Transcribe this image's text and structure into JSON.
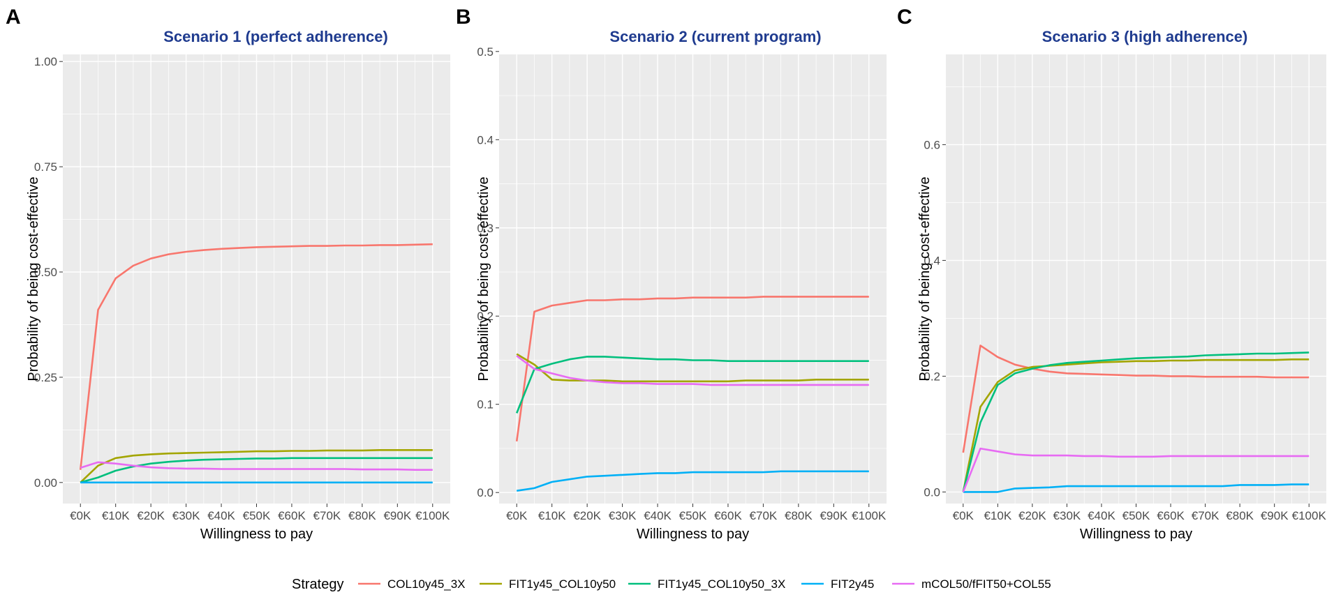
{
  "chart_data": [
    {
      "type": "line",
      "panel_label": "A",
      "title": "Scenario 1 (perfect adherence)",
      "xlabel": "Willingness to pay",
      "ylabel": "Probability of being cost-effective",
      "x": [
        0,
        5000,
        10000,
        15000,
        20000,
        25000,
        30000,
        35000,
        40000,
        45000,
        50000,
        55000,
        60000,
        65000,
        70000,
        75000,
        80000,
        85000,
        90000,
        95000,
        100000
      ],
      "xticks": [
        0,
        10000,
        20000,
        30000,
        40000,
        50000,
        60000,
        70000,
        80000,
        90000,
        100000
      ],
      "xtick_labels": [
        "€0K",
        "€10K",
        "€20K",
        "€30K",
        "€40K",
        "€50K",
        "€60K",
        "€70K",
        "€80K",
        "€90K",
        "€100K"
      ],
      "xlim": [
        -5000,
        105000
      ],
      "ylim": [
        -0.05,
        1.05
      ],
      "yticks": [
        0,
        0.25,
        0.5,
        0.75,
        1.0
      ],
      "ytick_labels": [
        "0.00",
        "0.25",
        "0.50",
        "0.75",
        "1.00"
      ],
      "series": [
        {
          "name": "COL10y45_3X",
          "color": "#F8766D",
          "values": [
            0.03,
            0.41,
            0.485,
            0.515,
            0.532,
            0.542,
            0.548,
            0.552,
            0.555,
            0.557,
            0.559,
            0.56,
            0.561,
            0.562,
            0.562,
            0.563,
            0.563,
            0.564,
            0.564,
            0.565,
            0.566
          ]
        },
        {
          "name": "FIT1y45_COL10y50",
          "color": "#A3A500",
          "values": [
            0.0,
            0.04,
            0.058,
            0.064,
            0.067,
            0.069,
            0.07,
            0.071,
            0.072,
            0.073,
            0.074,
            0.074,
            0.075,
            0.075,
            0.076,
            0.076,
            0.076,
            0.077,
            0.077,
            0.077,
            0.077
          ]
        },
        {
          "name": "FIT1y45_COL10y50_3X",
          "color": "#00BF7D",
          "values": [
            0.0,
            0.012,
            0.028,
            0.038,
            0.045,
            0.049,
            0.052,
            0.054,
            0.055,
            0.056,
            0.057,
            0.057,
            0.058,
            0.058,
            0.058,
            0.058,
            0.058,
            0.058,
            0.058,
            0.058,
            0.058
          ]
        },
        {
          "name": "FIT2y45",
          "color": "#00B0F6",
          "values": [
            0.0,
            0.0,
            0.0,
            0.0,
            0.0,
            0.0,
            0.0,
            0.0,
            0.0,
            0.0,
            0.0,
            0.0,
            0.0,
            0.0,
            0.0,
            0.0,
            0.0,
            0.0,
            0.0,
            0.0,
            0.0
          ]
        },
        {
          "name": "mCOL50/fFIT50+COL55",
          "color": "#E76BF3",
          "values": [
            0.035,
            0.048,
            0.045,
            0.04,
            0.036,
            0.034,
            0.033,
            0.033,
            0.032,
            0.032,
            0.032,
            0.032,
            0.032,
            0.032,
            0.032,
            0.032,
            0.031,
            0.031,
            0.031,
            0.03,
            0.03
          ]
        }
      ]
    },
    {
      "type": "line",
      "panel_label": "B",
      "title": "Scenario 2 (current program)",
      "xlabel": "Willingness to pay",
      "ylabel": "Probability of being cost-effective",
      "x": [
        0,
        5000,
        10000,
        15000,
        20000,
        25000,
        30000,
        35000,
        40000,
        45000,
        50000,
        55000,
        60000,
        65000,
        70000,
        75000,
        80000,
        85000,
        90000,
        95000,
        100000
      ],
      "xticks": [
        0,
        10000,
        20000,
        30000,
        40000,
        50000,
        60000,
        70000,
        80000,
        90000,
        100000
      ],
      "xtick_labels": [
        "€0K",
        "€10K",
        "€20K",
        "€30K",
        "€40K",
        "€50K",
        "€60K",
        "€70K",
        "€80K",
        "€90K",
        "€100K"
      ],
      "xlim": [
        -5000,
        105000
      ],
      "ylim": [
        -0.0125,
        0.5125
      ],
      "yticks": [
        0,
        0.1,
        0.2,
        0.3,
        0.4,
        0.5
      ],
      "ytick_labels": [
        "0.0",
        "0.1",
        "0.2",
        "0.3",
        "0.4",
        "0.5"
      ],
      "series": [
        {
          "name": "COL10y45_3X",
          "color": "#F8766D",
          "values": [
            0.058,
            0.205,
            0.212,
            0.215,
            0.218,
            0.218,
            0.219,
            0.219,
            0.22,
            0.22,
            0.221,
            0.221,
            0.221,
            0.221,
            0.222,
            0.222,
            0.222,
            0.222,
            0.222,
            0.222,
            0.222
          ]
        },
        {
          "name": "FIT1y45_COL10y50",
          "color": "#A3A500",
          "values": [
            0.157,
            0.145,
            0.128,
            0.127,
            0.127,
            0.127,
            0.126,
            0.126,
            0.126,
            0.126,
            0.126,
            0.126,
            0.126,
            0.127,
            0.127,
            0.127,
            0.127,
            0.128,
            0.128,
            0.128,
            0.128
          ]
        },
        {
          "name": "FIT1y45_COL10y50_3X",
          "color": "#00BF7D",
          "values": [
            0.09,
            0.14,
            0.146,
            0.151,
            0.154,
            0.154,
            0.153,
            0.152,
            0.151,
            0.151,
            0.15,
            0.15,
            0.149,
            0.149,
            0.149,
            0.149,
            0.149,
            0.149,
            0.149,
            0.149,
            0.149
          ]
        },
        {
          "name": "FIT2y45",
          "color": "#00B0F6",
          "values": [
            0.002,
            0.005,
            0.012,
            0.015,
            0.018,
            0.019,
            0.02,
            0.021,
            0.022,
            0.022,
            0.023,
            0.023,
            0.023,
            0.023,
            0.023,
            0.024,
            0.024,
            0.024,
            0.024,
            0.024,
            0.024
          ]
        },
        {
          "name": "mCOL50/fFIT50+COL55",
          "color": "#E76BF3",
          "values": [
            0.155,
            0.14,
            0.135,
            0.13,
            0.127,
            0.125,
            0.124,
            0.124,
            0.123,
            0.123,
            0.123,
            0.122,
            0.122,
            0.122,
            0.122,
            0.122,
            0.122,
            0.122,
            0.122,
            0.122,
            0.122
          ]
        }
      ]
    },
    {
      "type": "line",
      "panel_label": "C",
      "title": "Scenario 3 (high adherence)",
      "xlabel": "Willingness to pay",
      "ylabel": "Probability of being cost-effective",
      "x": [
        0,
        5000,
        10000,
        15000,
        20000,
        25000,
        30000,
        35000,
        40000,
        45000,
        50000,
        55000,
        60000,
        65000,
        70000,
        75000,
        80000,
        85000,
        90000,
        95000,
        100000
      ],
      "xticks": [
        0,
        10000,
        20000,
        30000,
        40000,
        50000,
        60000,
        70000,
        80000,
        90000,
        100000
      ],
      "xtick_labels": [
        "€0K",
        "€10K",
        "€20K",
        "€30K",
        "€40K",
        "€50K",
        "€60K",
        "€70K",
        "€80K",
        "€90K",
        "€100K"
      ],
      "xlim": [
        -5000,
        105000
      ],
      "ylim": [
        -0.02,
        0.78
      ],
      "yticks": [
        0,
        0.2,
        0.4,
        0.6
      ],
      "ytick_labels": [
        "0.0",
        "0.2",
        "0.4",
        "0.6"
      ],
      "series": [
        {
          "name": "COL10y45_3X",
          "color": "#F8766D",
          "values": [
            0.068,
            0.253,
            0.233,
            0.22,
            0.213,
            0.208,
            0.205,
            0.204,
            0.203,
            0.202,
            0.201,
            0.201,
            0.2,
            0.2,
            0.199,
            0.199,
            0.199,
            0.199,
            0.198,
            0.198,
            0.198
          ]
        },
        {
          "name": "FIT1y45_COL10y50",
          "color": "#A3A500",
          "values": [
            0.0,
            0.147,
            0.19,
            0.21,
            0.216,
            0.218,
            0.22,
            0.222,
            0.224,
            0.225,
            0.226,
            0.226,
            0.227,
            0.227,
            0.228,
            0.228,
            0.228,
            0.228,
            0.228,
            0.229,
            0.229
          ]
        },
        {
          "name": "FIT1y45_COL10y50_3X",
          "color": "#00BF7D",
          "values": [
            0.0,
            0.12,
            0.185,
            0.205,
            0.213,
            0.219,
            0.223,
            0.225,
            0.227,
            0.229,
            0.231,
            0.232,
            0.233,
            0.234,
            0.236,
            0.237,
            0.238,
            0.239,
            0.239,
            0.24,
            0.241
          ]
        },
        {
          "name": "FIT2y45",
          "color": "#00B0F6",
          "values": [
            0.0,
            0.0,
            0.0,
            0.006,
            0.007,
            0.008,
            0.01,
            0.01,
            0.01,
            0.01,
            0.01,
            0.01,
            0.01,
            0.01,
            0.01,
            0.01,
            0.012,
            0.012,
            0.012,
            0.013,
            0.013
          ]
        },
        {
          "name": "mCOL50/fFIT50+COL55",
          "color": "#E76BF3",
          "values": [
            0.0,
            0.075,
            0.07,
            0.065,
            0.063,
            0.063,
            0.063,
            0.062,
            0.062,
            0.061,
            0.061,
            0.061,
            0.062,
            0.062,
            0.062,
            0.062,
            0.062,
            0.062,
            0.062,
            0.062,
            0.062
          ]
        }
      ]
    }
  ],
  "legend": {
    "title": "Strategy",
    "position": "bottom",
    "entries": [
      {
        "name": "COL10y45_3X",
        "color": "#F8766D"
      },
      {
        "name": "FIT1y45_COL10y50",
        "color": "#A3A500"
      },
      {
        "name": "FIT1y45_COL10y50_3X",
        "color": "#00BF7D"
      },
      {
        "name": "FIT2y45",
        "color": "#00B0F6"
      },
      {
        "name": "mCOL50/fFIT50+COL55",
        "color": "#E76BF3"
      }
    ]
  }
}
